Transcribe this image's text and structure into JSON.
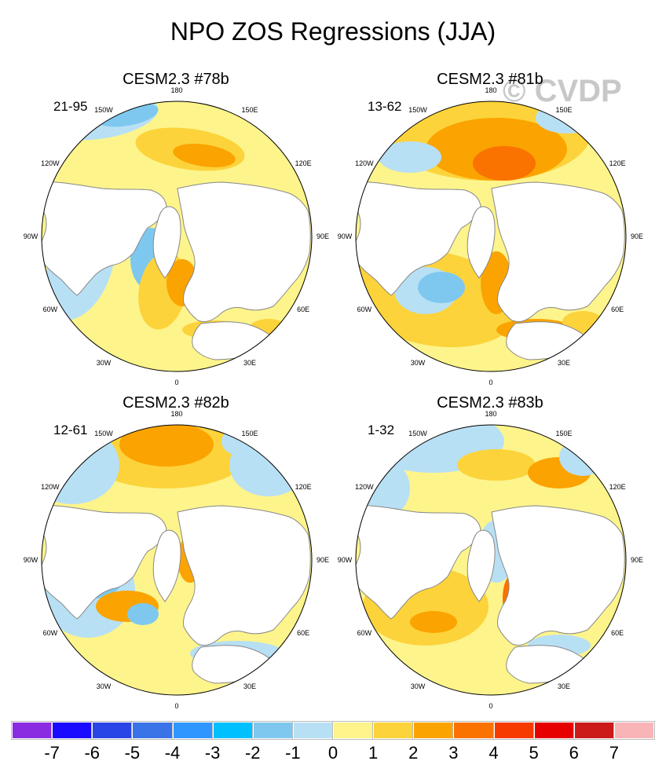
{
  "title": "NPO ZOS Regressions (JJA)",
  "watermark": "© CVDP",
  "longitude_labels": [
    "180",
    "150E",
    "120E",
    "90E",
    "60E",
    "30E",
    "0",
    "30W",
    "60W",
    "90W",
    "120W",
    "150W"
  ],
  "panels": [
    {
      "title": "CESM2.3 #78b",
      "label": "21-95",
      "warm_pattern": "Pacific-Asia warm band",
      "variant": 0
    },
    {
      "title": "CESM2.3 #81b",
      "label": "13-62",
      "warm_pattern": "Broad warm North Pacific",
      "variant": 1
    },
    {
      "title": "CESM2.3 #82b",
      "label": "12-61",
      "warm_pattern": "Central North Pacific warm core",
      "variant": 2
    },
    {
      "title": "CESM2.3 #83b",
      "label": "1-32",
      "warm_pattern": "Western Pacific warm patch",
      "variant": 3
    }
  ],
  "colorbar": {
    "labels": [
      "-7",
      "-6",
      "-5",
      "-4",
      "-3",
      "-2",
      "-1",
      "0",
      "1",
      "2",
      "3",
      "4",
      "5",
      "6",
      "7"
    ],
    "colors": [
      "#8a2be2",
      "#1a0aff",
      "#2a45e6",
      "#3a72e8",
      "#2f96ff",
      "#00c0ff",
      "#7ec8f0",
      "#b8e0f4",
      "#fdf48c",
      "#fcd33a",
      "#fba300",
      "#fa7200",
      "#f73a00",
      "#e60000",
      "#cc1a1a",
      "#f9b4b8"
    ]
  },
  "colors": {
    "ocean_base": "#fdf48c",
    "land": "#ffffff",
    "coast": "#888888",
    "light_blue": "#b8e0f4",
    "blue": "#7ec8f0",
    "deep_blue": "#2f96ff",
    "gold": "#fcd33a",
    "orange": "#fba300",
    "red_orange": "#fa7200"
  }
}
